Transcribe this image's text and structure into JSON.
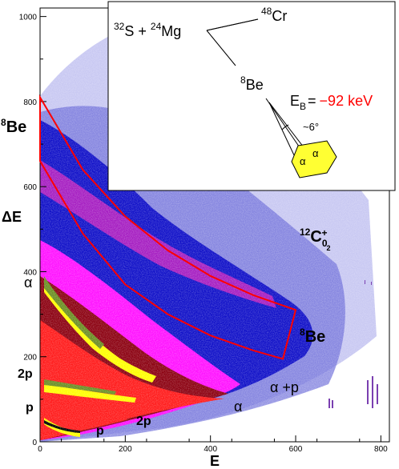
{
  "chart_data": {
    "type": "heatmap",
    "title": "",
    "xlabel": "E",
    "ylabel": "ΔE",
    "xlim": [
      0,
      820
    ],
    "ylim": [
      0,
      1020
    ],
    "x_ticks": [
      0,
      200,
      400,
      600,
      800
    ],
    "y_ticks": [
      0,
      200,
      400,
      600,
      800,
      1000
    ],
    "grid": false,
    "palette": [
      "#8080e0",
      "#1010c0",
      "#ff00ff",
      "#8b0000",
      "#ff1a1a",
      "#ffff00",
      "#6b8e23",
      "#000000"
    ],
    "bands": [
      {
        "name": "8Be",
        "x": [
          0,
          100,
          200,
          300,
          400,
          500,
          600
        ],
        "y": [
          700,
          560,
          450,
          380,
          330,
          290,
          260
        ]
      },
      {
        "name": "α",
        "x": [
          0,
          100,
          200,
          300,
          400,
          420
        ],
        "y": [
          360,
          240,
          170,
          120,
          90,
          80
        ]
      },
      {
        "name": "2p",
        "x": [
          0,
          100,
          200,
          300,
          370
        ],
        "y": [
          200,
          140,
          110,
          90,
          80
        ]
      },
      {
        "name": "p",
        "x": [
          0,
          50,
          100,
          150,
          180
        ],
        "y": [
          90,
          70,
          50,
          40,
          35
        ]
      }
    ],
    "gate": {
      "name": "8Be",
      "color": "#ff0000",
      "upper": [
        [
          0,
          810
        ],
        [
          100,
          640
        ],
        [
          200,
          530
        ],
        [
          300,
          450
        ],
        [
          400,
          390
        ],
        [
          500,
          345
        ],
        [
          600,
          310
        ]
      ],
      "lower": [
        [
          0,
          660
        ],
        [
          100,
          490
        ],
        [
          200,
          370
        ],
        [
          300,
          300
        ],
        [
          400,
          250
        ],
        [
          500,
          215
        ],
        [
          570,
          195
        ]
      ]
    },
    "annotations": {
      "be8_left": "8Be",
      "be8_right": "8Be",
      "alpha_left": "α",
      "two_p": "2p",
      "p": "p",
      "two_p_bottom": "2p",
      "p_bottom": "p",
      "alpha_center": "α",
      "alpha_p": "α +p",
      "c12_base": "C",
      "c12_mass": "12",
      "c12_sub": "0",
      "c12_sub2": "2",
      "c12_sup": "+"
    },
    "inset": {
      "s_mass": "32",
      "s_sym": "S + ",
      "mg_mass": "24",
      "mg_sym": "Mg",
      "cr_mass": "48",
      "cr_sym": "Cr",
      "be_mass": "8",
      "be_sym": "Be",
      "eb_label": "E",
      "eb_sub": "B",
      "eb_eq": "=",
      "eb_value": "−92 keV",
      "angle": "~6°",
      "alpha_a": "α",
      "alpha_b": "α"
    }
  }
}
